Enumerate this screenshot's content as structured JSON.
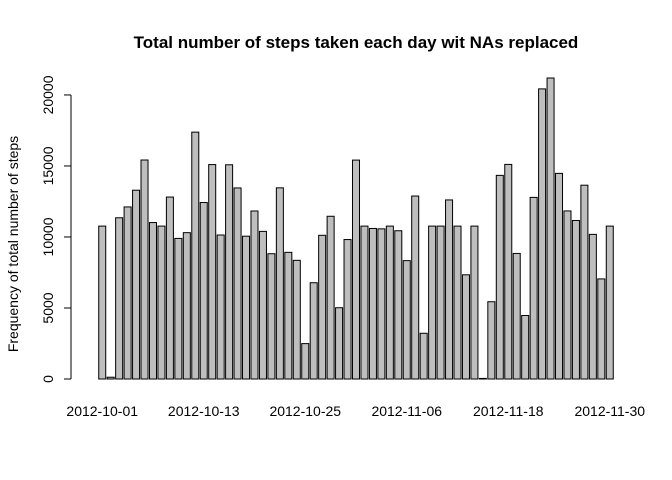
{
  "chart_data": {
    "type": "bar",
    "title": "Total number of steps taken each day wit NAs replaced",
    "xlabel": "",
    "ylabel": "Frequency of total number of steps",
    "ylim": [
      0,
      21194
    ],
    "yticks": [
      0,
      5000,
      10000,
      15000,
      20000
    ],
    "xtick_labels": [
      "2012-10-01",
      "2012-10-13",
      "2012-10-25",
      "2012-11-06",
      "2012-11-18",
      "2012-11-30"
    ],
    "xtick_indices": [
      0,
      12,
      24,
      36,
      48,
      60
    ],
    "categories": [
      "2012-10-01",
      "2012-10-02",
      "2012-10-03",
      "2012-10-04",
      "2012-10-05",
      "2012-10-06",
      "2012-10-07",
      "2012-10-08",
      "2012-10-09",
      "2012-10-10",
      "2012-10-11",
      "2012-10-12",
      "2012-10-13",
      "2012-10-14",
      "2012-10-15",
      "2012-10-16",
      "2012-10-17",
      "2012-10-18",
      "2012-10-19",
      "2012-10-20",
      "2012-10-21",
      "2012-10-22",
      "2012-10-23",
      "2012-10-24",
      "2012-10-25",
      "2012-10-26",
      "2012-10-27",
      "2012-10-28",
      "2012-10-29",
      "2012-10-30",
      "2012-10-31",
      "2012-11-01",
      "2012-11-02",
      "2012-11-03",
      "2012-11-04",
      "2012-11-05",
      "2012-11-06",
      "2012-11-07",
      "2012-11-08",
      "2012-11-09",
      "2012-11-10",
      "2012-11-11",
      "2012-11-12",
      "2012-11-13",
      "2012-11-14",
      "2012-11-15",
      "2012-11-16",
      "2012-11-17",
      "2012-11-18",
      "2012-11-19",
      "2012-11-20",
      "2012-11-21",
      "2012-11-22",
      "2012-11-23",
      "2012-11-24",
      "2012-11-25",
      "2012-11-26",
      "2012-11-27",
      "2012-11-28",
      "2012-11-29",
      "2012-11-30"
    ],
    "values": [
      10766,
      126,
      11352,
      12116,
      13294,
      15420,
      11015,
      10766,
      12811,
      9900,
      10304,
      17382,
      12426,
      15098,
      10139,
      15084,
      13452,
      10056,
      11829,
      10395,
      8821,
      13460,
      8918,
      8355,
      2492,
      6778,
      10119,
      11458,
      5018,
      9819,
      15414,
      10766,
      10600,
      10571,
      10766,
      10439,
      8334,
      12883,
      3219,
      10766,
      10766,
      12608,
      10765,
      7336,
      10766,
      41,
      5441,
      14339,
      15110,
      8841,
      4472,
      12787,
      20427,
      21194,
      14478,
      11834,
      11162,
      13646,
      10183,
      7047,
      10766
    ],
    "grid": false,
    "bar_color": "#bebebe",
    "edge_color": "#000000"
  }
}
